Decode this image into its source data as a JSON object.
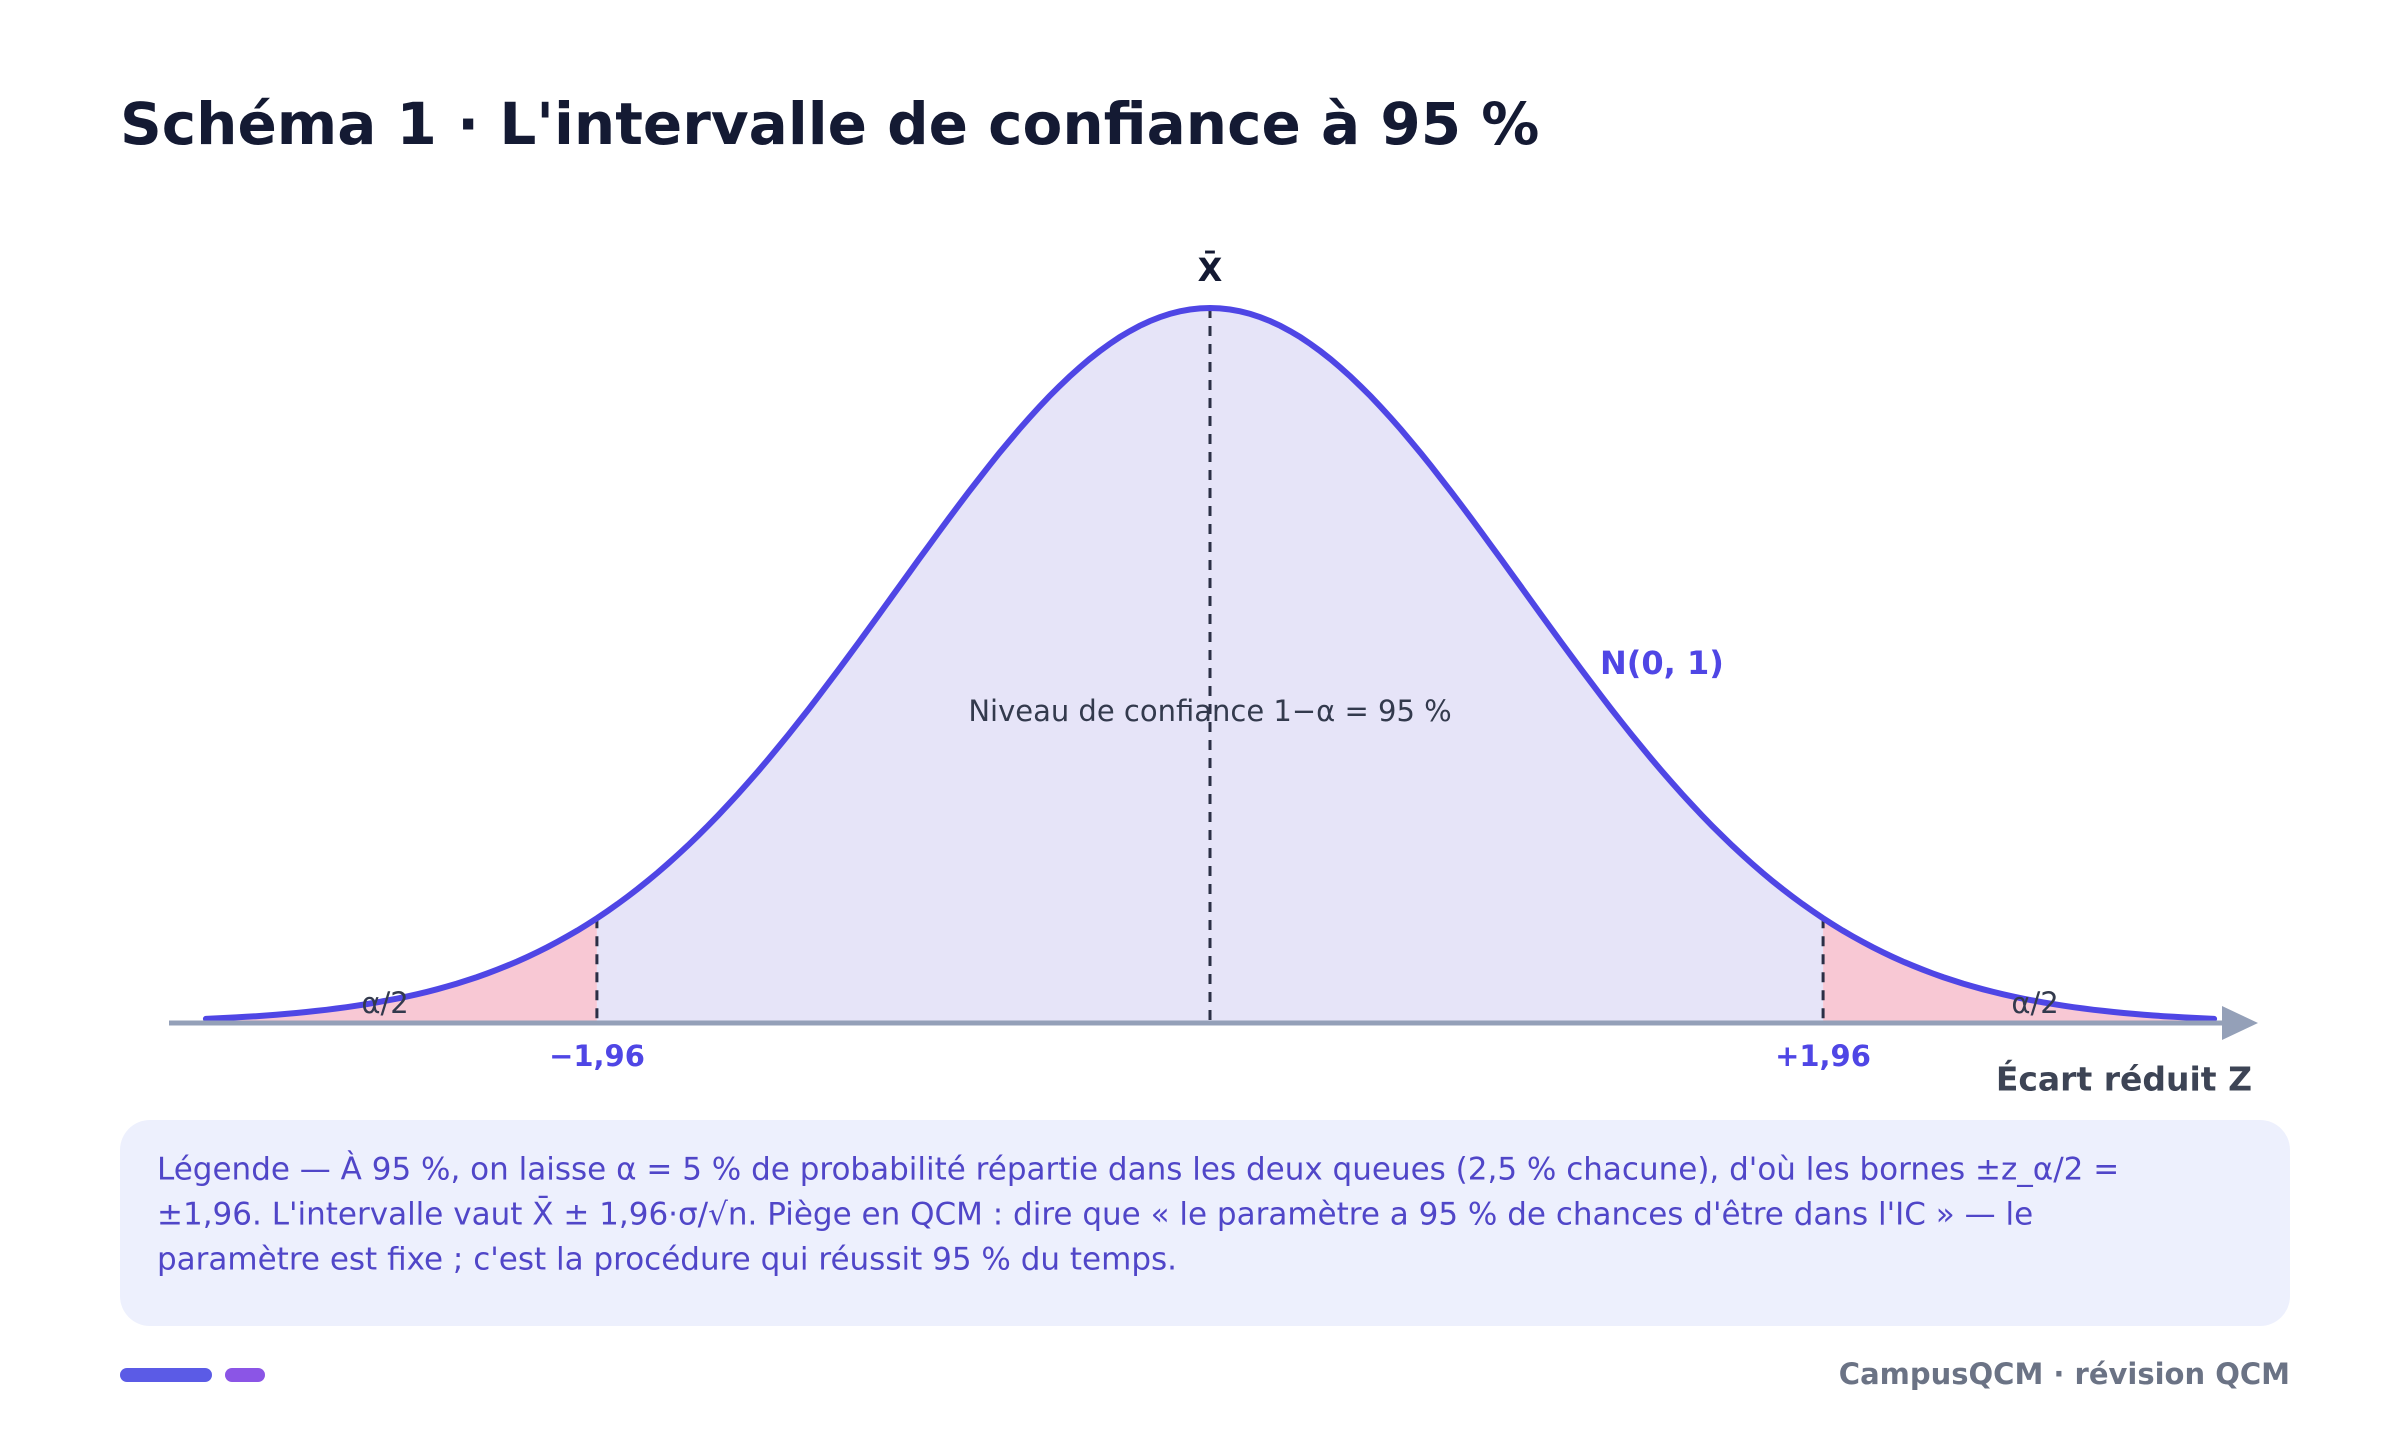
{
  "header": {
    "title": "Schéma 1 · L'intervalle de confiance à 95 %"
  },
  "diagram": {
    "mean_label": "X̄",
    "curve_label": "N(0, 1)",
    "center_label": "Niveau de confiance 1−α = 95 %",
    "left_tail_label": "α/2",
    "right_tail_label": "α/2",
    "left_bound_label": "−1,96",
    "right_bound_label": "+1,96",
    "axis_label": "Écart réduit Z"
  },
  "legend": {
    "lines": [
      "Légende — À 95 %, on laisse α = 5 % de probabilité répartie dans les deux queues (2,5 % chacune), d'où les bornes ±z_α/2 =",
      "±1,96. L'intervalle vaut X̄ ± 1,96·σ/√n. Piège en QCM : dire que « le paramètre a 95 % de chances d'être dans l'IC » — le",
      "paramètre est fixe ; c'est la procédure qui réussit 95 % du temps."
    ]
  },
  "footer": {
    "brand": "CampusQCM · révision QCM"
  }
}
